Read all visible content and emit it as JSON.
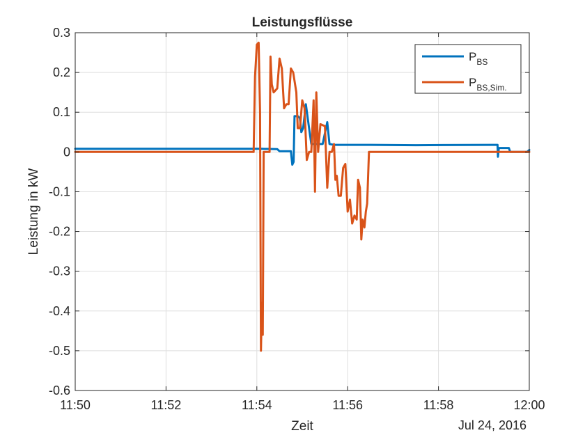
{
  "chart_data": {
    "type": "line",
    "title": "Leistungsflüsse",
    "xlabel": "Zeit",
    "ylabel": "Leistung in kW",
    "date_label": "Jul 24, 2016",
    "x_unit": "minutes",
    "xlim": [
      0,
      10
    ],
    "ylim": [
      -0.6,
      0.3
    ],
    "x_ticks": [
      0,
      2,
      4,
      6,
      8,
      10
    ],
    "x_tick_labels": [
      "11:50",
      "11:52",
      "11:54",
      "11:56",
      "11:58",
      "12:00"
    ],
    "y_ticks": [
      -0.6,
      -0.5,
      -0.4,
      -0.3,
      -0.2,
      -0.1,
      0,
      0.1,
      0.2,
      0.3
    ],
    "y_tick_labels": [
      "-0.6",
      "-0.5",
      "-0.4",
      "-0.3",
      "-0.2",
      "-0.1",
      "0",
      "0.1",
      "0.2",
      "0.3"
    ],
    "grid": true,
    "legend_position": "top-right",
    "series": [
      {
        "name": "P",
        "name_sub": "BS",
        "color": "#0072BD",
        "points": [
          [
            0,
            0.008
          ],
          [
            3.9,
            0.008
          ],
          [
            4.1,
            0.008
          ],
          [
            4.45,
            0.007
          ],
          [
            4.5,
            0.002
          ],
          [
            4.75,
            0.002
          ],
          [
            4.78,
            -0.032
          ],
          [
            4.81,
            -0.025
          ],
          [
            4.83,
            0.09
          ],
          [
            4.9,
            0.09
          ],
          [
            4.95,
            0.085
          ],
          [
            4.98,
            0.05
          ],
          [
            5.02,
            0.06
          ],
          [
            5.08,
            0.12
          ],
          [
            5.15,
            0.06
          ],
          [
            5.2,
            0.02
          ],
          [
            5.45,
            0.02
          ],
          [
            5.55,
            0.075
          ],
          [
            5.6,
            0.02
          ],
          [
            5.7,
            0.018
          ],
          [
            6.5,
            0.018
          ],
          [
            7.5,
            0.017
          ],
          [
            9.2,
            0.018
          ],
          [
            9.3,
            0.018
          ],
          [
            9.31,
            -0.012
          ],
          [
            9.33,
            0.01
          ],
          [
            9.55,
            0.01
          ],
          [
            9.58,
            0.0
          ],
          [
            9.95,
            0.0
          ],
          [
            10,
            0.005
          ]
        ]
      },
      {
        "name": "P",
        "name_sub": "BS,Sim.",
        "color": "#D95319",
        "points": [
          [
            0,
            0.0
          ],
          [
            3.93,
            0.0
          ],
          [
            3.96,
            0.19
          ],
          [
            4.0,
            0.27
          ],
          [
            4.04,
            0.275
          ],
          [
            4.07,
            0.1
          ],
          [
            4.09,
            -0.5
          ],
          [
            4.11,
            -0.38
          ],
          [
            4.13,
            -0.46
          ],
          [
            4.15,
            0.0
          ],
          [
            4.28,
            0.0
          ],
          [
            4.3,
            0.24
          ],
          [
            4.33,
            0.17
          ],
          [
            4.37,
            0.15
          ],
          [
            4.45,
            0.16
          ],
          [
            4.5,
            0.235
          ],
          [
            4.55,
            0.21
          ],
          [
            4.6,
            0.11
          ],
          [
            4.65,
            0.12
          ],
          [
            4.7,
            0.12
          ],
          [
            4.75,
            0.21
          ],
          [
            4.8,
            0.2
          ],
          [
            4.87,
            0.15
          ],
          [
            4.9,
            0.06
          ],
          [
            4.95,
            0.06
          ],
          [
            5.0,
            0.13
          ],
          [
            5.05,
            0.11
          ],
          [
            5.1,
            -0.02
          ],
          [
            5.15,
            0.0
          ],
          [
            5.2,
            0.0
          ],
          [
            5.25,
            0.13
          ],
          [
            5.28,
            -0.1
          ],
          [
            5.31,
            0.15
          ],
          [
            5.35,
            0.0
          ],
          [
            5.4,
            0.07
          ],
          [
            5.5,
            0.065
          ],
          [
            5.55,
            -0.09
          ],
          [
            5.6,
            0.0
          ],
          [
            5.65,
            0.0
          ],
          [
            5.7,
            0.02
          ],
          [
            5.73,
            -0.07
          ],
          [
            5.76,
            -0.06
          ],
          [
            5.8,
            -0.11
          ],
          [
            5.85,
            -0.11
          ],
          [
            5.9,
            -0.04
          ],
          [
            5.95,
            -0.03
          ],
          [
            6.0,
            -0.15
          ],
          [
            6.05,
            -0.12
          ],
          [
            6.1,
            -0.18
          ],
          [
            6.15,
            -0.16
          ],
          [
            6.2,
            -0.17
          ],
          [
            6.23,
            -0.07
          ],
          [
            6.27,
            -0.09
          ],
          [
            6.3,
            -0.22
          ],
          [
            6.33,
            -0.17
          ],
          [
            6.37,
            -0.19
          ],
          [
            6.4,
            -0.15
          ],
          [
            6.43,
            -0.13
          ],
          [
            6.47,
            0.0
          ],
          [
            10,
            0.0
          ]
        ]
      }
    ]
  }
}
